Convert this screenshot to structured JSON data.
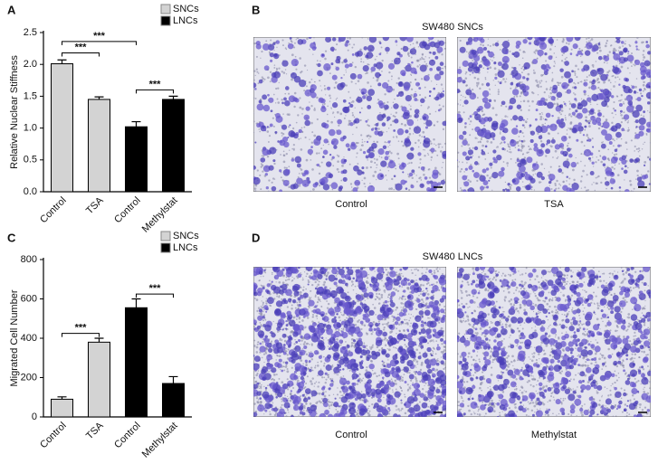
{
  "panel_letters": [
    "A",
    "B",
    "C",
    "D"
  ],
  "chart_data": [
    {
      "type": "bar",
      "ylabel": "Relative Nuclear Stiffness",
      "categories": [
        "Control",
        "TSA",
        "Control",
        "Methylstat"
      ],
      "series": [
        {
          "name": "SNCs",
          "color": "#d3d3d3",
          "values": [
            2.01,
            1.45,
            null,
            null
          ],
          "errors": [
            0.06,
            0.04,
            null,
            null
          ]
        },
        {
          "name": "LNCs",
          "color": "#000000",
          "values": [
            null,
            null,
            1.02,
            1.45
          ],
          "errors": [
            null,
            null,
            0.08,
            0.05
          ]
        }
      ],
      "ylim": [
        0,
        2.5
      ],
      "yticks": [
        {
          "value": 0,
          "label": "0.0"
        },
        0.5,
        {
          "value": 1,
          "label": "1.0"
        },
        1.5,
        {
          "value": 2,
          "label": "2.0"
        },
        2.5
      ],
      "legend": "top-right",
      "annotations": [
        {
          "text": "***",
          "from": 0,
          "to": 2,
          "y": 2.36
        },
        {
          "text": "***",
          "from": 0,
          "to": 1,
          "y": 2.18
        },
        {
          "text": "***",
          "from": 2,
          "to": 3,
          "y": 1.6
        }
      ]
    },
    {
      "type": "bar",
      "ylabel": "Migrated Cell Number",
      "categories": [
        "Control",
        "TSA",
        "Control",
        "Methylstat"
      ],
      "series": [
        {
          "name": "SNCs",
          "color": "#d3d3d3",
          "values": [
            90,
            380,
            null,
            null
          ],
          "errors": [
            12,
            20,
            null,
            null
          ]
        },
        {
          "name": "LNCs",
          "color": "#000000",
          "values": [
            null,
            null,
            555,
            170
          ],
          "errors": [
            null,
            null,
            45,
            35
          ]
        }
      ],
      "ylim": [
        0,
        800
      ],
      "yticks": [
        0,
        200,
        400,
        600,
        800
      ],
      "legend": "top-right",
      "annotations": [
        {
          "text": "***",
          "from": 0,
          "to": 1,
          "y": 425
        },
        {
          "text": "***",
          "from": 2,
          "to": 3,
          "y": 625
        }
      ]
    }
  ],
  "panels": {
    "B": {
      "title": "SW480 SNCs",
      "captions": [
        "Control",
        "TSA"
      ]
    },
    "D": {
      "title": "SW480 LNCs",
      "captions": [
        "Control",
        "Methylstat"
      ]
    }
  }
}
